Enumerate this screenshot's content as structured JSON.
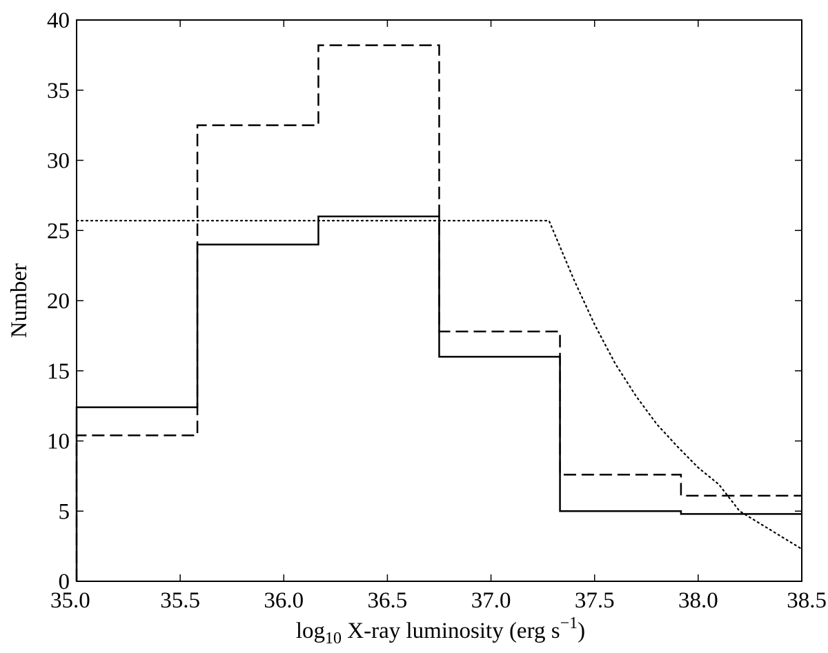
{
  "chart_data": {
    "type": "line",
    "title": "",
    "xlabel": {
      "prefix": "log",
      "sub": "10",
      "main": " X-ray luminosity (erg s",
      "sup": "−1",
      "suffix": ")"
    },
    "ylabel": "Number",
    "xlim": [
      35.0,
      38.5
    ],
    "ylim": [
      0,
      40
    ],
    "grid": false,
    "legend": "none",
    "x_ticks": [
      {
        "value": 35.0,
        "label": "35.0"
      },
      {
        "value": 35.5,
        "label": "35.5"
      },
      {
        "value": 36.0,
        "label": "36.0"
      },
      {
        "value": 36.5,
        "label": "36.5"
      },
      {
        "value": 37.0,
        "label": "37.0"
      },
      {
        "value": 37.5,
        "label": "37.5"
      },
      {
        "value": 38.0,
        "label": "38.0"
      },
      {
        "value": 38.5,
        "label": "38.5"
      }
    ],
    "y_ticks": [
      {
        "value": 0,
        "label": "0"
      },
      {
        "value": 5,
        "label": "5"
      },
      {
        "value": 10,
        "label": "10"
      },
      {
        "value": 15,
        "label": "15"
      },
      {
        "value": 20,
        "label": "20"
      },
      {
        "value": 25,
        "label": "25"
      },
      {
        "value": 30,
        "label": "30"
      },
      {
        "value": 35,
        "label": "35"
      },
      {
        "value": 40,
        "label": "40"
      }
    ],
    "bin_edges": [
      35.0,
      35.583,
      36.167,
      36.75,
      37.333,
      37.917,
      38.5
    ],
    "series": [
      {
        "style": "solid",
        "kind": "histogram",
        "values": [
          12.4,
          24.0,
          26.0,
          16.0,
          5.0,
          4.8
        ],
        "color": "#000000"
      },
      {
        "style": "dashed",
        "kind": "histogram",
        "values": [
          10.4,
          32.5,
          38.2,
          17.8,
          7.6,
          6.1
        ],
        "color": "#000000"
      },
      {
        "style": "dotted",
        "kind": "curve",
        "color": "#000000",
        "x": [
          35.0,
          37.28,
          37.4,
          37.5,
          37.6,
          37.7,
          37.8,
          37.9,
          38.0,
          38.1,
          38.2,
          38.3,
          38.4,
          38.5
        ],
        "y": [
          25.7,
          25.7,
          21.5,
          18.3,
          15.5,
          13.2,
          11.2,
          9.6,
          8.1,
          6.9,
          5.0,
          4.1,
          3.2,
          2.3
        ]
      }
    ]
  }
}
